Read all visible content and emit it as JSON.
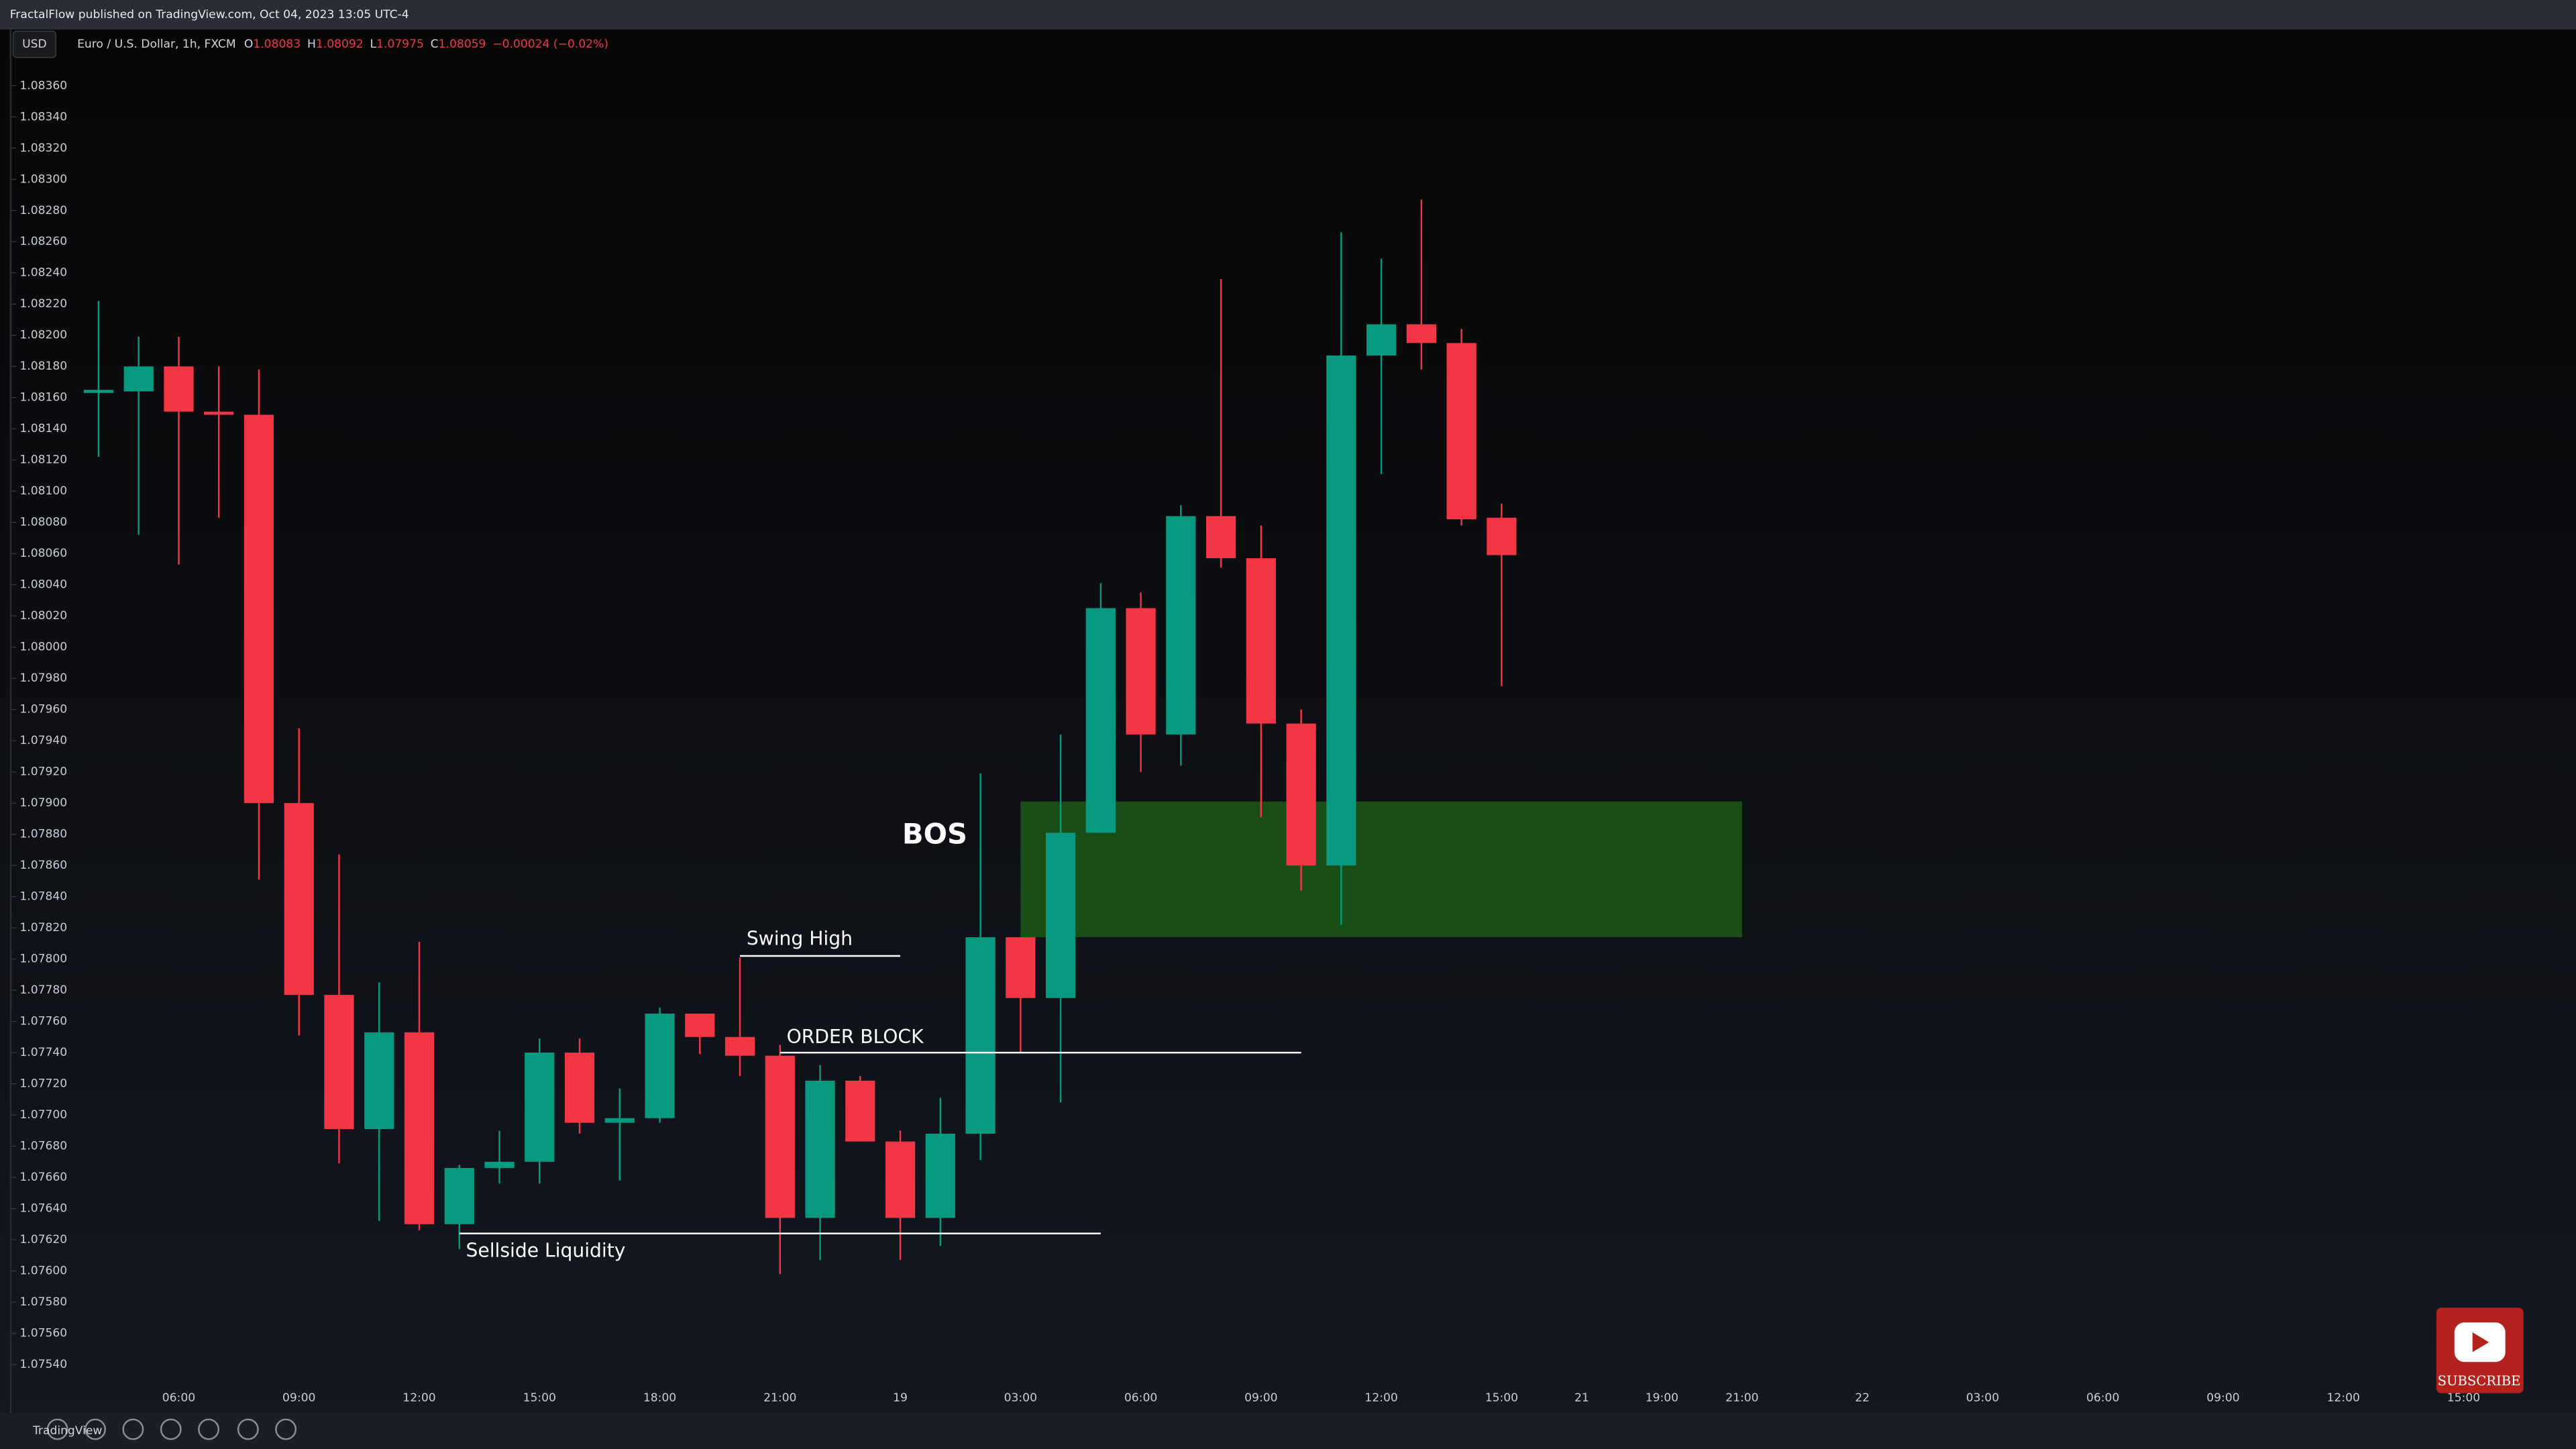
{
  "header": {
    "publisher": "FractalFlow published on TradingView.com, Oct 04, 2023 13:05 UTC-4",
    "currency": "USD",
    "symbol": "Euro / U.S. Dollar, 1h, FXCM",
    "ohlc": [
      {
        "label": "O",
        "value": 1.08083
      },
      {
        "label": "H",
        "value": 1.08092
      },
      {
        "label": "L",
        "value": 1.07975
      },
      {
        "label": "C",
        "value": 1.08059
      }
    ],
    "change": "−0.00024 (−0.02%)"
  },
  "chart_data": {
    "type": "candlestick",
    "up_color": "#089981",
    "down_color": "#f23645",
    "grid": false,
    "categories": [
      null,
      null,
      null,
      "06:00",
      null,
      null,
      "09:00",
      null,
      null,
      "12:00",
      null,
      null,
      "15:00",
      null,
      null,
      "18:00",
      null,
      null,
      "21:00",
      null,
      null,
      "19",
      null,
      null,
      "03:00",
      null,
      null,
      "06:00",
      null,
      null,
      "09:00",
      null,
      null,
      "12:00",
      null,
      null,
      "15:00",
      null,
      "21",
      null,
      "19:00",
      null,
      "21:00",
      null,
      null,
      "22",
      null,
      null,
      "03:00",
      null,
      null,
      "06:00",
      null,
      null,
      "09:00",
      null,
      null,
      "12:00",
      null,
      null,
      "15:00",
      null,
      null
    ],
    "open": [
      null,
      1.08163,
      1.08164,
      1.0818,
      1.08151,
      1.08149,
      1.079,
      1.07777,
      1.07691,
      1.07753,
      1.0763,
      1.07666,
      1.0767,
      1.0774,
      1.07695,
      1.07698,
      1.07765,
      1.0775,
      1.07738,
      1.07634,
      1.07722,
      1.07683,
      1.07634,
      1.07688,
      1.07814,
      1.07775,
      1.07881,
      1.08025,
      1.07944,
      1.08084,
      1.08057,
      1.07951,
      1.0786,
      1.08187,
      1.08207,
      1.08195,
      1.08083,
      null,
      null,
      null,
      null,
      null,
      null,
      null,
      null,
      null,
      null,
      null,
      null,
      null,
      null,
      null,
      null,
      null,
      null,
      null,
      null,
      null,
      null,
      null,
      null,
      null,
      null
    ],
    "high": [
      null,
      1.08222,
      1.08199,
      1.08199,
      1.0818,
      1.08178,
      1.07948,
      1.07867,
      1.07785,
      1.07811,
      1.07668,
      1.0769,
      1.07749,
      1.07749,
      1.07717,
      1.07769,
      1.07765,
      1.07801,
      1.07745,
      1.07732,
      1.07725,
      1.0769,
      1.07711,
      1.07919,
      1.07814,
      1.07944,
      1.08041,
      1.08035,
      1.08091,
      1.08236,
      1.08078,
      1.0796,
      1.08266,
      1.08249,
      1.08287,
      1.08204,
      1.08092,
      null,
      null,
      null,
      null,
      null,
      null,
      null,
      null,
      null,
      null,
      null,
      null,
      null,
      null,
      null,
      null,
      null,
      null,
      null,
      null,
      null,
      null,
      null,
      null,
      null,
      null
    ],
    "low": [
      null,
      1.08122,
      1.08072,
      1.08053,
      1.08083,
      1.07851,
      1.07751,
      1.07669,
      1.07632,
      1.07626,
      1.07614,
      1.07656,
      1.07656,
      1.07688,
      1.07658,
      1.07695,
      1.07739,
      1.07725,
      1.07598,
      1.07607,
      1.07683,
      1.07607,
      1.07616,
      1.07671,
      1.0774,
      1.07708,
      1.07881,
      1.0792,
      1.07924,
      1.08051,
      1.07891,
      1.07844,
      1.07822,
      1.08111,
      1.08178,
      1.08078,
      1.07975,
      null,
      null,
      null,
      null,
      null,
      null,
      null,
      null,
      null,
      null,
      null,
      null,
      null,
      null,
      null,
      null,
      null,
      null,
      null,
      null,
      null,
      null,
      null,
      null,
      null,
      null
    ],
    "close": [
      null,
      1.08165,
      1.0818,
      1.08151,
      1.08149,
      1.079,
      1.07777,
      1.07691,
      1.07753,
      1.0763,
      1.07666,
      1.0767,
      1.0774,
      1.07695,
      1.07698,
      1.07765,
      1.0775,
      1.07738,
      1.07634,
      1.07722,
      1.07683,
      1.07634,
      1.07688,
      1.07814,
      1.07775,
      1.07881,
      1.08025,
      1.07944,
      1.08084,
      1.08057,
      1.07951,
      1.0786,
      1.08187,
      1.08207,
      1.08195,
      1.08082,
      1.08059,
      null,
      null,
      null,
      null,
      null,
      null,
      null,
      null,
      null,
      null,
      null,
      null,
      null,
      null,
      null,
      null,
      null,
      null,
      null,
      null,
      null,
      null,
      null,
      null,
      null,
      null
    ],
    "ylim": [
      1.07509,
      1.08396
    ],
    "yticks": [
      {
        "value": 1.0754,
        "label": "1.07540"
      },
      {
        "value": 1.0756,
        "label": "1.07560"
      },
      {
        "value": 1.0758,
        "label": "1.07580"
      },
      {
        "value": 1.076,
        "label": "1.07600"
      },
      {
        "value": 1.0762,
        "label": "1.07620"
      },
      {
        "value": 1.0764,
        "label": "1.07640"
      },
      {
        "value": 1.0766,
        "label": "1.07660"
      },
      {
        "value": 1.0768,
        "label": "1.07680"
      },
      {
        "value": 1.077,
        "label": "1.07700"
      },
      {
        "value": 1.0772,
        "label": "1.07720"
      },
      {
        "value": 1.0774,
        "label": "1.07740"
      },
      {
        "value": 1.0776,
        "label": "1.07760"
      },
      {
        "value": 1.0778,
        "label": "1.07780"
      },
      {
        "value": 1.078,
        "label": "1.07800"
      },
      {
        "value": 1.0782,
        "label": "1.07820"
      },
      {
        "value": 1.0784,
        "label": "1.07840"
      },
      {
        "value": 1.0786,
        "label": "1.07860"
      },
      {
        "value": 1.0788,
        "label": "1.07880"
      },
      {
        "value": 1.079,
        "label": "1.07900"
      },
      {
        "value": 1.0792,
        "label": "1.07920"
      },
      {
        "value": 1.0794,
        "label": "1.07940"
      },
      {
        "value": 1.0796,
        "label": "1.07960"
      },
      {
        "value": 1.0798,
        "label": "1.07980"
      },
      {
        "value": 1.08,
        "label": "1.08000"
      },
      {
        "value": 1.0802,
        "label": "1.08020"
      },
      {
        "value": 1.0804,
        "label": "1.08040"
      },
      {
        "value": 1.0806,
        "label": "1.08060"
      },
      {
        "value": 1.0808,
        "label": "1.08080"
      },
      {
        "value": 1.081,
        "label": "1.08100"
      },
      {
        "value": 1.0812,
        "label": "1.08120"
      },
      {
        "value": 1.0814,
        "label": "1.08140"
      },
      {
        "value": 1.0816,
        "label": "1.08160"
      },
      {
        "value": 1.0818,
        "label": "1.08180"
      },
      {
        "value": 1.082,
        "label": "1.08200"
      },
      {
        "value": 1.0822,
        "label": "1.08220"
      },
      {
        "value": 1.0824,
        "label": "1.08240"
      },
      {
        "value": 1.0826,
        "label": "1.08260"
      },
      {
        "value": 1.0828,
        "label": "1.08280"
      },
      {
        "value": 1.083,
        "label": "1.08300"
      },
      {
        "value": 1.0832,
        "label": "1.08320"
      },
      {
        "value": 1.0834,
        "label": "1.08340"
      },
      {
        "value": 1.0836,
        "label": "1.08360"
      }
    ],
    "zone": {
      "top": 1.07901,
      "bottom": 1.07814,
      "color": "#1b5a17"
    },
    "annotations": [
      {
        "text": "BOS"
      },
      {
        "text": "Swing High",
        "price": 1.07802
      },
      {
        "text": "ORDER BLOCK",
        "price": 1.0774
      },
      {
        "text": "Sellside Liquidity",
        "price": 1.07624
      }
    ]
  },
  "footer": {
    "brand": "TradingView",
    "subscribe": "SUBSCRIBE"
  }
}
